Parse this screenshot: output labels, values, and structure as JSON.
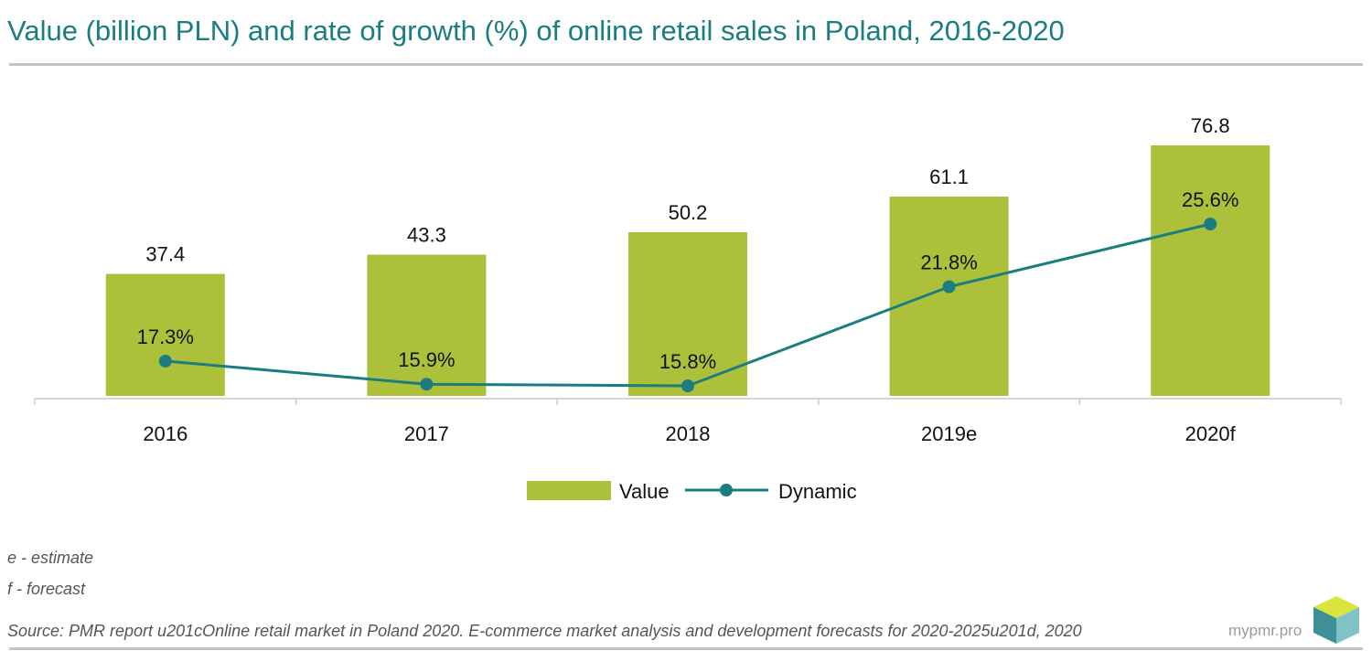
{
  "title": "Value (billion PLN) and rate of growth (%) of online retail sales in Poland, 2016-2020",
  "notes": [
    "e - estimate",
    "f - forecast"
  ],
  "source": "Source: PMR report u201cOnline retail market in Poland 2020. E-commerce market analysis and development forecasts for 2020-2025u201d, 2020",
  "brand": "mypmr.pro",
  "colors": {
    "bar": "#adc03a",
    "line": "#1a7d80",
    "title": "#1a7d80"
  },
  "chart_data": {
    "type": "bar",
    "categories": [
      "2016",
      "2017",
      "2018",
      "2019e",
      "2020f"
    ],
    "series": [
      {
        "name": "Value",
        "type": "bar",
        "values": [
          37.4,
          43.3,
          50.2,
          61.1,
          76.8
        ],
        "labels": [
          "37.4",
          "43.3",
          "50.2",
          "61.1",
          "76.8"
        ]
      },
      {
        "name": "Dynamic",
        "type": "line",
        "values": [
          17.3,
          15.9,
          15.8,
          21.8,
          25.6
        ],
        "labels": [
          "17.3%",
          "15.9%",
          "15.8%",
          "21.8%",
          "25.6%"
        ]
      }
    ],
    "title": "Value (billion PLN) and rate of growth (%) of online retail sales in Poland, 2016-2020",
    "legend": "bottom-center",
    "grid": false
  }
}
